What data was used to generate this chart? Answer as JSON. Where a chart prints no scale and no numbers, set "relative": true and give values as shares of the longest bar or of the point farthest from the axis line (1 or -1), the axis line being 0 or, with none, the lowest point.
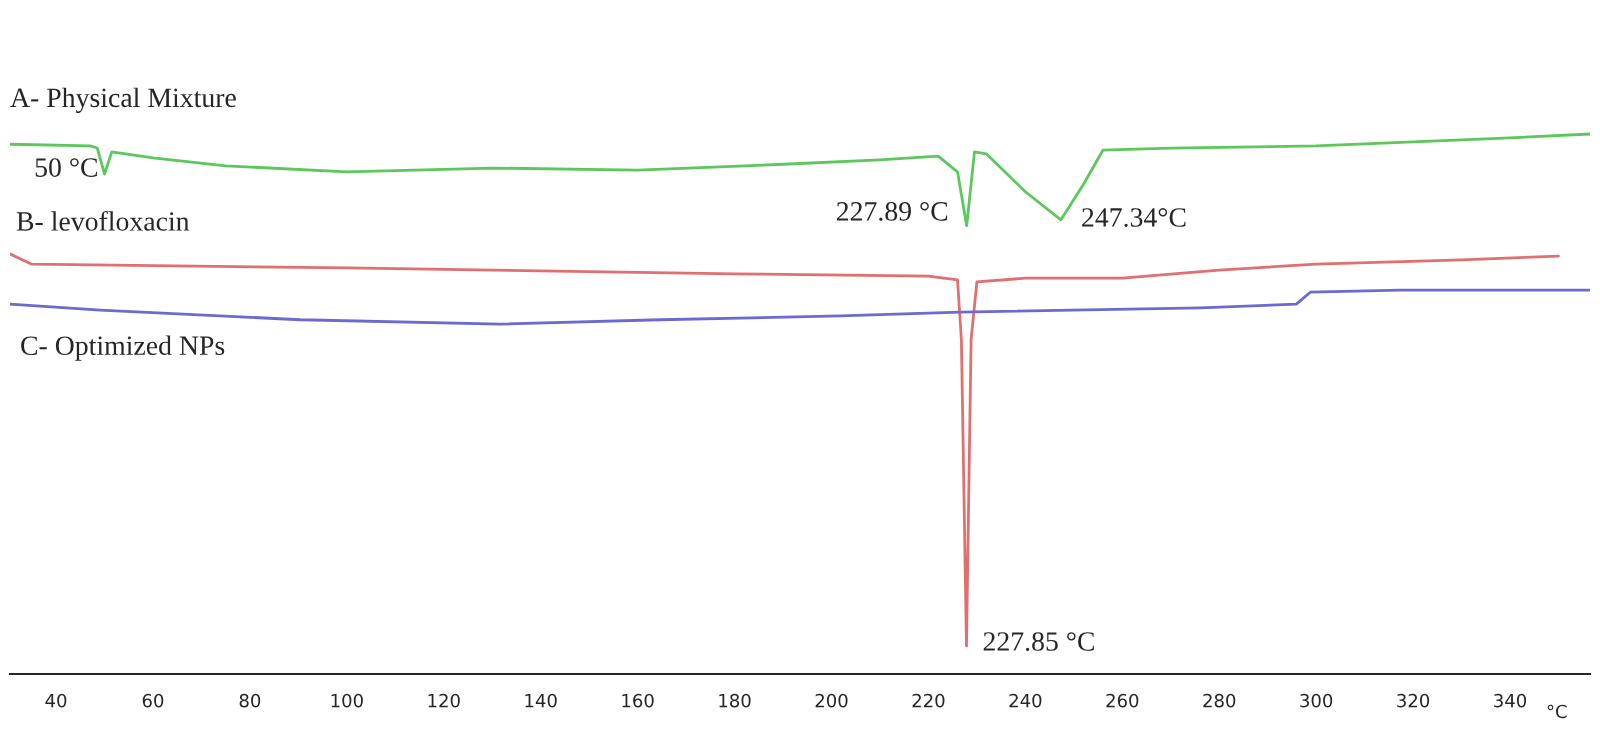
{
  "chart_data": {
    "type": "line",
    "relative": true,
    "xlabel": "°C",
    "xlim": [
      30.5,
      356.5
    ],
    "xticks": [
      40,
      60,
      80,
      100,
      120,
      140,
      160,
      180,
      200,
      220,
      240,
      260,
      280,
      300,
      320,
      340
    ],
    "grid": false,
    "legend": false,
    "marker": "none",
    "line_style": "solid",
    "series": [
      {
        "name": "A- Physical Mixture",
        "color": "#5cc85c",
        "x": [
          30.5,
          47,
          48.5,
          50,
          51.5,
          60,
          75,
          100,
          130,
          160,
          190,
          210,
          222,
          226,
          227.89,
          229.5,
          232,
          240,
          247.34,
          252,
          256,
          270,
          300,
          330,
          340,
          356.5
        ],
        "values": [
          0.981,
          0.978,
          0.974,
          0.926,
          0.967,
          0.956,
          0.941,
          0.93,
          0.937,
          0.933,
          0.944,
          0.952,
          0.959,
          0.93,
          0.83,
          0.967,
          0.963,
          0.893,
          0.841,
          0.907,
          0.97,
          0.974,
          0.978,
          0.989,
          0.993,
          1.0
        ]
      },
      {
        "name": "B- levofloxacin",
        "color": "#e07070",
        "x": [
          30.5,
          35,
          100,
          180,
          220,
          226,
          226.8,
          227.85,
          228.8,
          230,
          240,
          260,
          280,
          300,
          330,
          350
        ],
        "values": [
          0.778,
          0.759,
          0.752,
          0.741,
          0.737,
          0.73,
          0.619,
          0.052,
          0.619,
          0.726,
          0.733,
          0.733,
          0.748,
          0.759,
          0.767,
          0.774
        ]
      },
      {
        "name": "C- Optimized NPs",
        "color": "#6a6ad0",
        "x": [
          30.5,
          49.1,
          90.4,
          131.6,
          164.6,
          201.8,
          226.5,
          276.1,
          295.9,
          298.8,
          317.3,
          356.5
        ],
        "values": [
          0.685,
          0.674,
          0.656,
          0.648,
          0.656,
          0.663,
          0.67,
          0.678,
          0.685,
          0.707,
          0.711,
          0.711
        ]
      }
    ],
    "annotations": [
      {
        "text": "50 °C",
        "x": 50,
        "y": 0.926
      },
      {
        "text": "227.89 °C",
        "x": 227.89,
        "y": 0.83
      },
      {
        "text": "247.34°C",
        "x": 247.34,
        "y": 0.841
      },
      {
        "text": "227.85 °C",
        "x": 227.85,
        "y": 0.052
      }
    ]
  }
}
